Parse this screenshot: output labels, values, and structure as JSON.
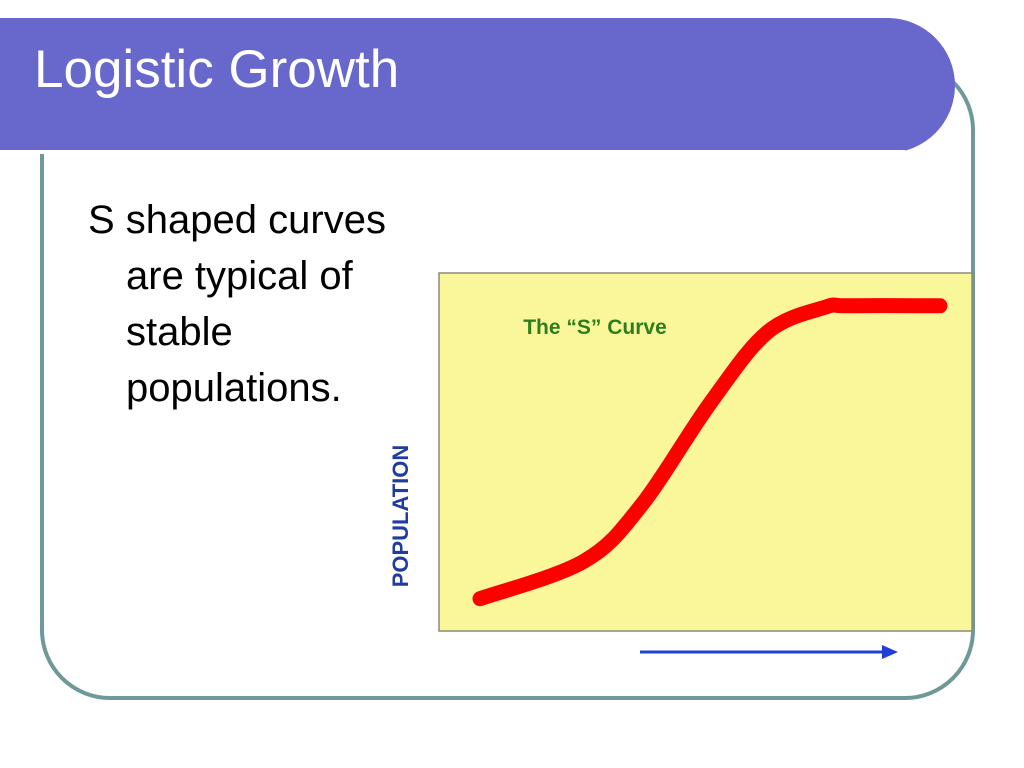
{
  "slide": {
    "title": "Logistic Growth",
    "body_text": "S shaped curves are typical of stable populations."
  },
  "colors": {
    "title_bar": "#6868cc",
    "frame": "#6f9999",
    "chart_background": "#f9f79a",
    "curve": "#ff0000",
    "chart_title": "#2e7d1f",
    "axis_label": "#1f3c9e",
    "arrow": "#1f3fd6"
  },
  "chart_data": {
    "type": "line",
    "title": "The “S” Curve",
    "xlabel": "",
    "ylabel": "POPULATION",
    "xlim": [
      0,
      10
    ],
    "ylim": [
      0,
      10
    ],
    "grid": false,
    "legend": "none",
    "series": [
      {
        "x": [
          0,
          2.25,
          3.5,
          5,
          6.25,
          7.5,
          8,
          10
        ],
        "y": [
          0.3,
          1.5,
          3.3,
          6.6,
          8.9,
          9.7,
          9.75,
          9.75
        ]
      }
    ]
  }
}
